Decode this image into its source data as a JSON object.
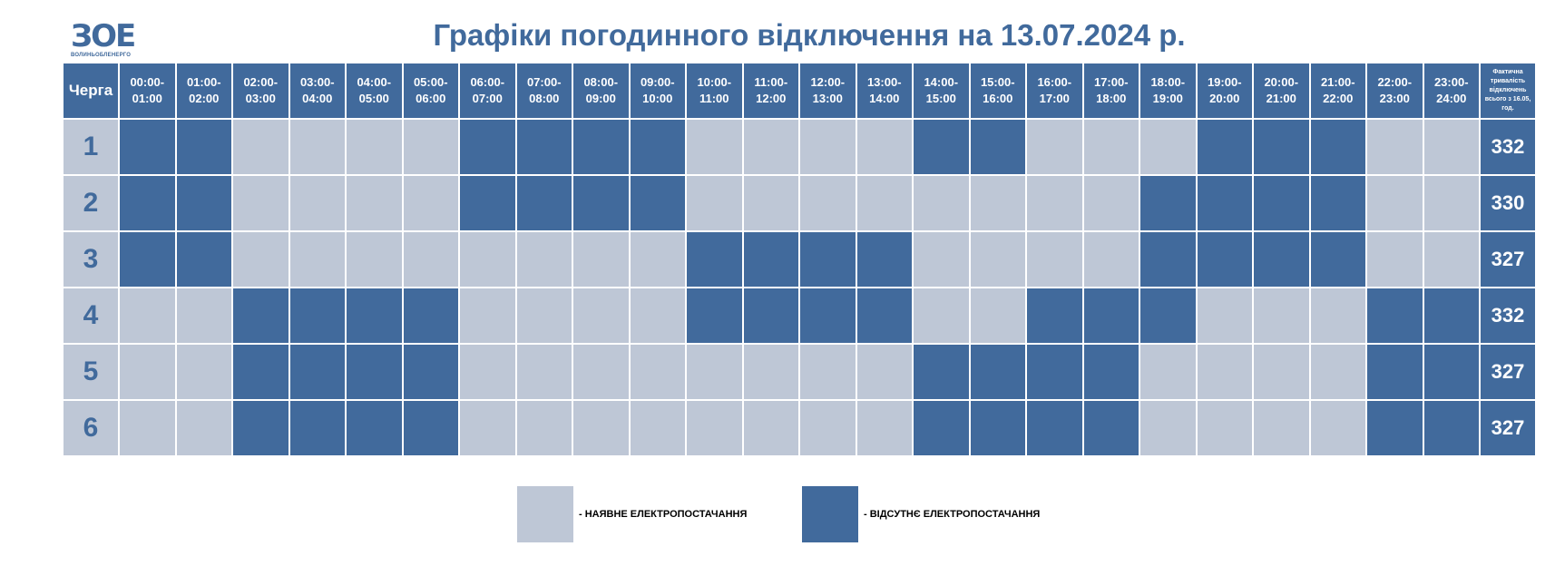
{
  "logo": {
    "mark": "ЗОЕ",
    "text": "ВОЛИНЬОБЛЕНЕРГО"
  },
  "title": "Графіки погодинного відключення на 13.07.2024 р.",
  "header": {
    "queue_label": "Черга",
    "hours": [
      "00:00- 01:00",
      "01:00- 02:00",
      "02:00- 03:00",
      "03:00- 04:00",
      "04:00- 05:00",
      "05:00- 06:00",
      "06:00- 07:00",
      "07:00- 08:00",
      "08:00- 09:00",
      "09:00- 10:00",
      "10:00- 11:00",
      "11:00- 12:00",
      "12:00- 13:00",
      "13:00- 14:00",
      "14:00- 15:00",
      "15:00- 16:00",
      "16:00- 17:00",
      "17:00- 18:00",
      "18:00- 19:00",
      "19:00- 20:00",
      "20:00- 21:00",
      "21:00- 22:00",
      "22:00- 23:00",
      "23:00- 24:00"
    ],
    "total_label": "Фактична тривалість відключень всього з 16.05, год."
  },
  "rows": [
    {
      "queue": "1",
      "schedule": [
        1,
        1,
        0,
        0,
        0,
        0,
        1,
        1,
        1,
        1,
        0,
        0,
        0,
        0,
        1,
        1,
        0,
        0,
        0,
        1,
        1,
        1,
        0,
        0
      ],
      "total": "332"
    },
    {
      "queue": "2",
      "schedule": [
        1,
        1,
        0,
        0,
        0,
        0,
        1,
        1,
        1,
        1,
        0,
        0,
        0,
        0,
        0,
        0,
        0,
        0,
        1,
        1,
        1,
        1,
        0,
        0
      ],
      "total": "330"
    },
    {
      "queue": "3",
      "schedule": [
        1,
        1,
        0,
        0,
        0,
        0,
        0,
        0,
        0,
        0,
        1,
        1,
        1,
        1,
        0,
        0,
        0,
        0,
        1,
        1,
        1,
        1,
        0,
        0
      ],
      "total": "327"
    },
    {
      "queue": "4",
      "schedule": [
        0,
        0,
        1,
        1,
        1,
        1,
        0,
        0,
        0,
        0,
        1,
        1,
        1,
        1,
        0,
        0,
        1,
        1,
        1,
        0,
        0,
        0,
        1,
        1
      ],
      "total": "332"
    },
    {
      "queue": "5",
      "schedule": [
        0,
        0,
        1,
        1,
        1,
        1,
        0,
        0,
        0,
        0,
        0,
        0,
        0,
        0,
        1,
        1,
        1,
        1,
        0,
        0,
        0,
        0,
        1,
        1
      ],
      "total": "327"
    },
    {
      "queue": "6",
      "schedule": [
        0,
        0,
        1,
        1,
        1,
        1,
        0,
        0,
        0,
        0,
        0,
        0,
        0,
        0,
        1,
        1,
        1,
        1,
        0,
        0,
        0,
        0,
        1,
        1
      ],
      "total": "327"
    }
  ],
  "legend": {
    "available": "- НАЯВНЕ ЕЛЕКТРОПОСТАЧАННЯ",
    "unavailable": "- ВІДСУТНЄ ЕЛЕКТРОПОСТАЧАННЯ"
  },
  "colors": {
    "off": "#416a9c",
    "on": "#bec7d6",
    "title": "#416a9c"
  }
}
